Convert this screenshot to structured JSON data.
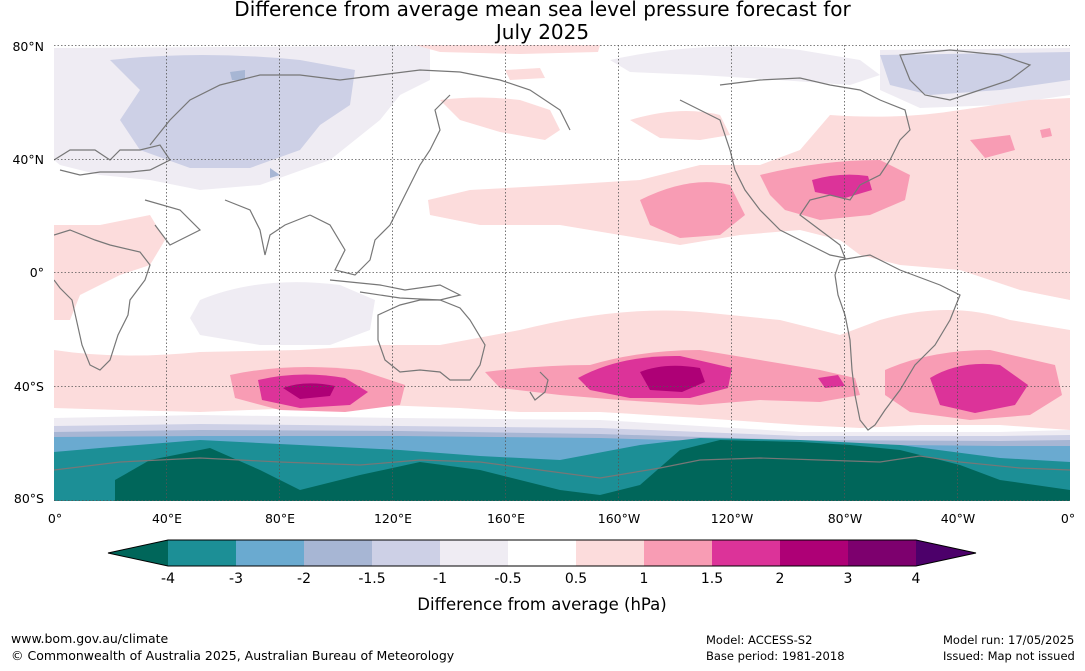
{
  "title_line1": "Difference from average mean sea level pressure forecast for",
  "title_line2": "July 2025",
  "map": {
    "lat_labels": [
      "80°N",
      "40°N",
      "0°",
      "40°S",
      "80°S"
    ],
    "lon_labels": [
      "0°",
      "40°E",
      "80°E",
      "120°E",
      "160°E",
      "160°W",
      "120°W",
      "80°W",
      "40°W",
      "0°"
    ]
  },
  "colors": {
    "n4": "#00665a",
    "n3": "#1c8f96",
    "n2": "#6aaad0",
    "n15": "#a7b6d4",
    "n1": "#cdd0e6",
    "n05": "#efecf3",
    "z": "#ffffff",
    "p05": "#fcdcdc",
    "p1": "#f89cb4",
    "p15": "#dc3399",
    "p2": "#ae0076",
    "p3": "#7d006e",
    "p4": "#4c006a",
    "coast": "#777777"
  },
  "legend": {
    "ticks": [
      "-4",
      "-3",
      "-2",
      "-1.5",
      "-1",
      "-0.5",
      "0.5",
      "1",
      "1.5",
      "2",
      "3",
      "4"
    ],
    "label": "Difference from average (hPa)"
  },
  "footer": {
    "website": "www.bom.gov.au/climate",
    "copyright": "© Commonwealth of Australia 2025, Australian Bureau of Meteorology",
    "model": "Model: ACCESS-S2",
    "base_period": "Base period: 1981-2018",
    "model_run": "Model run: 17/05/2025",
    "issued": "Issued: Map not issued"
  }
}
